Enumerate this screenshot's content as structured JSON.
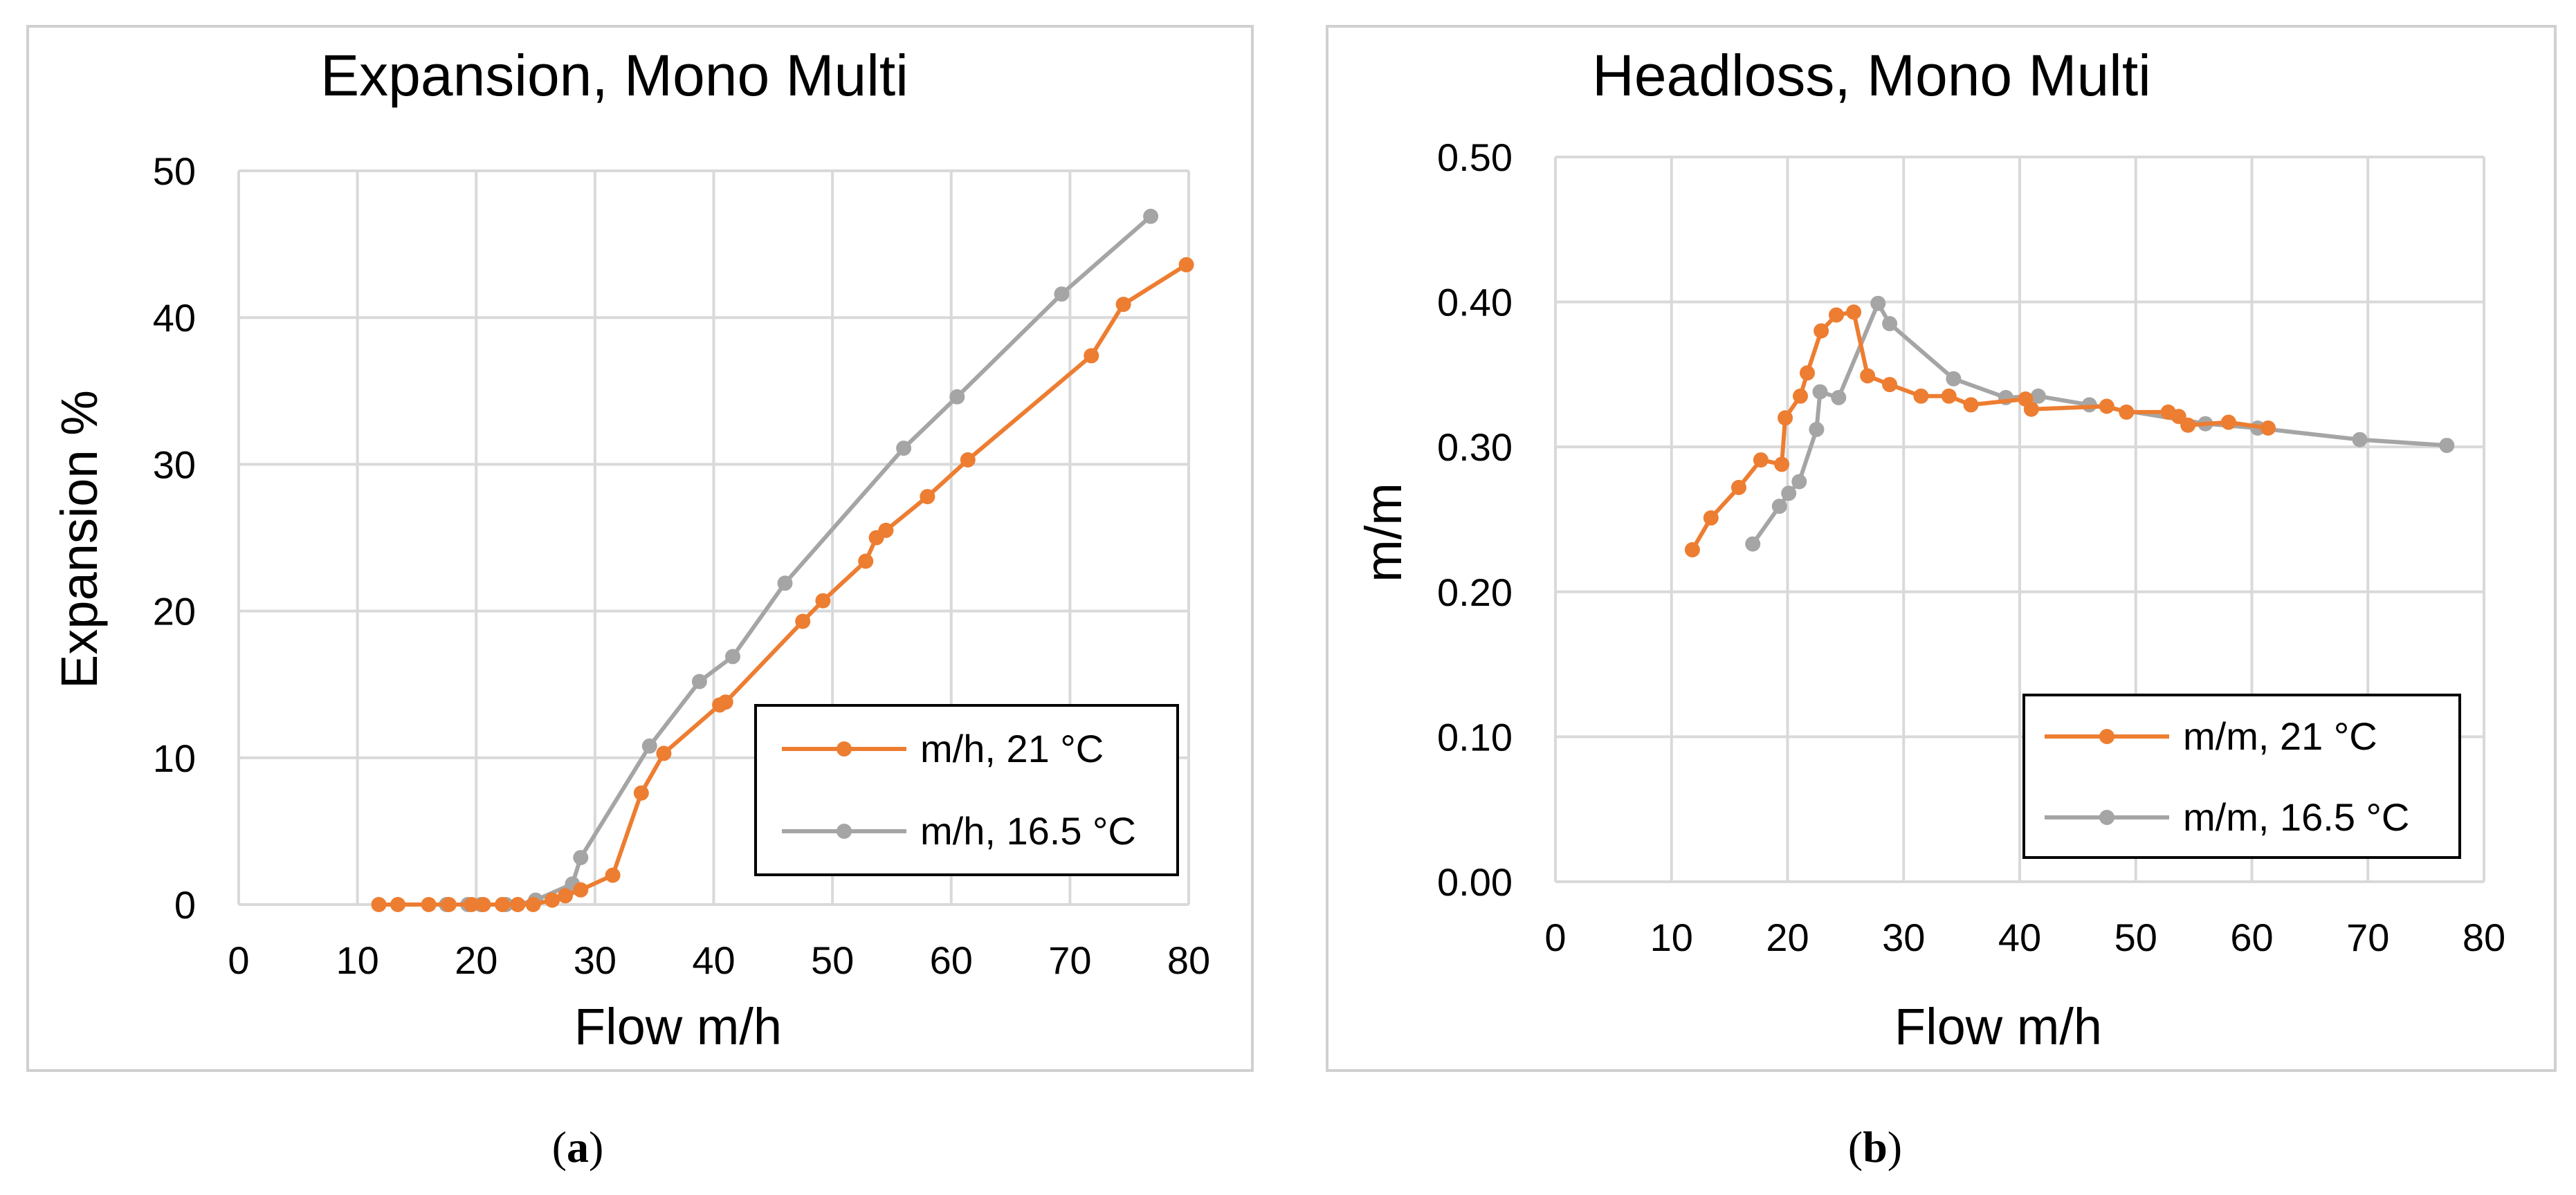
{
  "captions": {
    "a": "a",
    "b": "b"
  },
  "colors": {
    "orange": "#ED7D31",
    "gray": "#A5A5A5",
    "grid": "#D9D9D9"
  },
  "chart_data": [
    {
      "type": "line",
      "title": "Expansion, Mono Multi",
      "xlabel": "Flow m/h",
      "ylabel": "Expansion %",
      "xlim": [
        0,
        80
      ],
      "ylim": [
        0,
        50
      ],
      "xticks": [
        0,
        10,
        20,
        30,
        40,
        50,
        60,
        70,
        80
      ],
      "yticks": [
        0,
        10,
        20,
        30,
        40,
        50
      ],
      "ytick_labels": [
        "0",
        "10",
        "20",
        "30",
        "40",
        "50"
      ],
      "legend_position": "lower-right",
      "series": [
        {
          "name": "m/h, 21 °C",
          "color": "#ED7D31",
          "x": [
            11.8,
            13.4,
            16,
            17.7,
            19.6,
            20.6,
            22.2,
            23.5,
            24.8,
            26.4,
            27.5,
            28.8,
            31.5,
            33.9,
            35.8,
            40.5,
            41,
            47.5,
            49.2,
            52.8,
            53.7,
            54.5,
            58,
            61.4,
            71.8,
            74.5,
            79.8
          ],
          "y": [
            0,
            0,
            0,
            0,
            0,
            0,
            0,
            0,
            0,
            0.3,
            0.6,
            1,
            2,
            7.6,
            10.3,
            13.6,
            13.8,
            19.3,
            20.7,
            23.4,
            25,
            25.5,
            27.8,
            30.3,
            37.4,
            40.9,
            43.6
          ]
        },
        {
          "name": "m/h, 16.5 °C",
          "color": "#A5A5A5",
          "x": [
            17.5,
            19.3,
            20.4,
            22.5,
            23.5,
            25,
            28.1,
            28.8,
            34.6,
            38.8,
            41.6,
            46,
            56,
            60.5,
            69.3,
            76.8
          ],
          "y": [
            0,
            0,
            0,
            0,
            0,
            0.3,
            1.4,
            3.2,
            10.8,
            15.2,
            16.9,
            21.9,
            31.1,
            34.6,
            41.6,
            46.9
          ]
        }
      ]
    },
    {
      "type": "line",
      "title": "Headloss, Mono Multi",
      "xlabel": "Flow m/h",
      "ylabel": "m/m",
      "xlim": [
        0,
        80
      ],
      "ylim": [
        0,
        0.5
      ],
      "xticks": [
        0,
        10,
        20,
        30,
        40,
        50,
        60,
        70,
        80
      ],
      "yticks": [
        0,
        0.1,
        0.2,
        0.3,
        0.4,
        0.5
      ],
      "ytick_labels": [
        "0.00",
        "0.10",
        "0.20",
        "0.30",
        "0.40",
        "0.50"
      ],
      "legend_position": "lower-right",
      "series": [
        {
          "name": "m/m, 21 °C",
          "color": "#ED7D31",
          "x": [
            11.8,
            13.4,
            15.8,
            17.7,
            19.5,
            19.8,
            21.1,
            21.7,
            22.9,
            24.2,
            25.7,
            26.9,
            28.8,
            31.5,
            33.9,
            35.8,
            40.5,
            41,
            47.5,
            49.2,
            52.8,
            53.7,
            54.5,
            58,
            61.4
          ],
          "y": [
            0.229,
            0.251,
            0.272,
            0.291,
            0.288,
            0.32,
            0.335,
            0.351,
            0.38,
            0.391,
            0.393,
            0.349,
            0.343,
            0.335,
            0.335,
            0.329,
            0.333,
            0.326,
            0.328,
            0.324,
            0.324,
            0.321,
            0.315,
            0.317,
            0.313
          ]
        },
        {
          "name": "m/m, 16.5 °C",
          "color": "#A5A5A5",
          "x": [
            17,
            19.3,
            20.1,
            21,
            22.5,
            22.8,
            24.4,
            27.8,
            28.8,
            34.3,
            38.8,
            41.6,
            46,
            56,
            60.5,
            69.3,
            76.8
          ],
          "y": [
            0.233,
            0.259,
            0.268,
            0.276,
            0.312,
            0.338,
            0.334,
            0.399,
            0.385,
            0.347,
            0.334,
            0.335,
            0.329,
            0.316,
            0.313,
            0.305,
            0.301
          ]
        }
      ]
    }
  ]
}
